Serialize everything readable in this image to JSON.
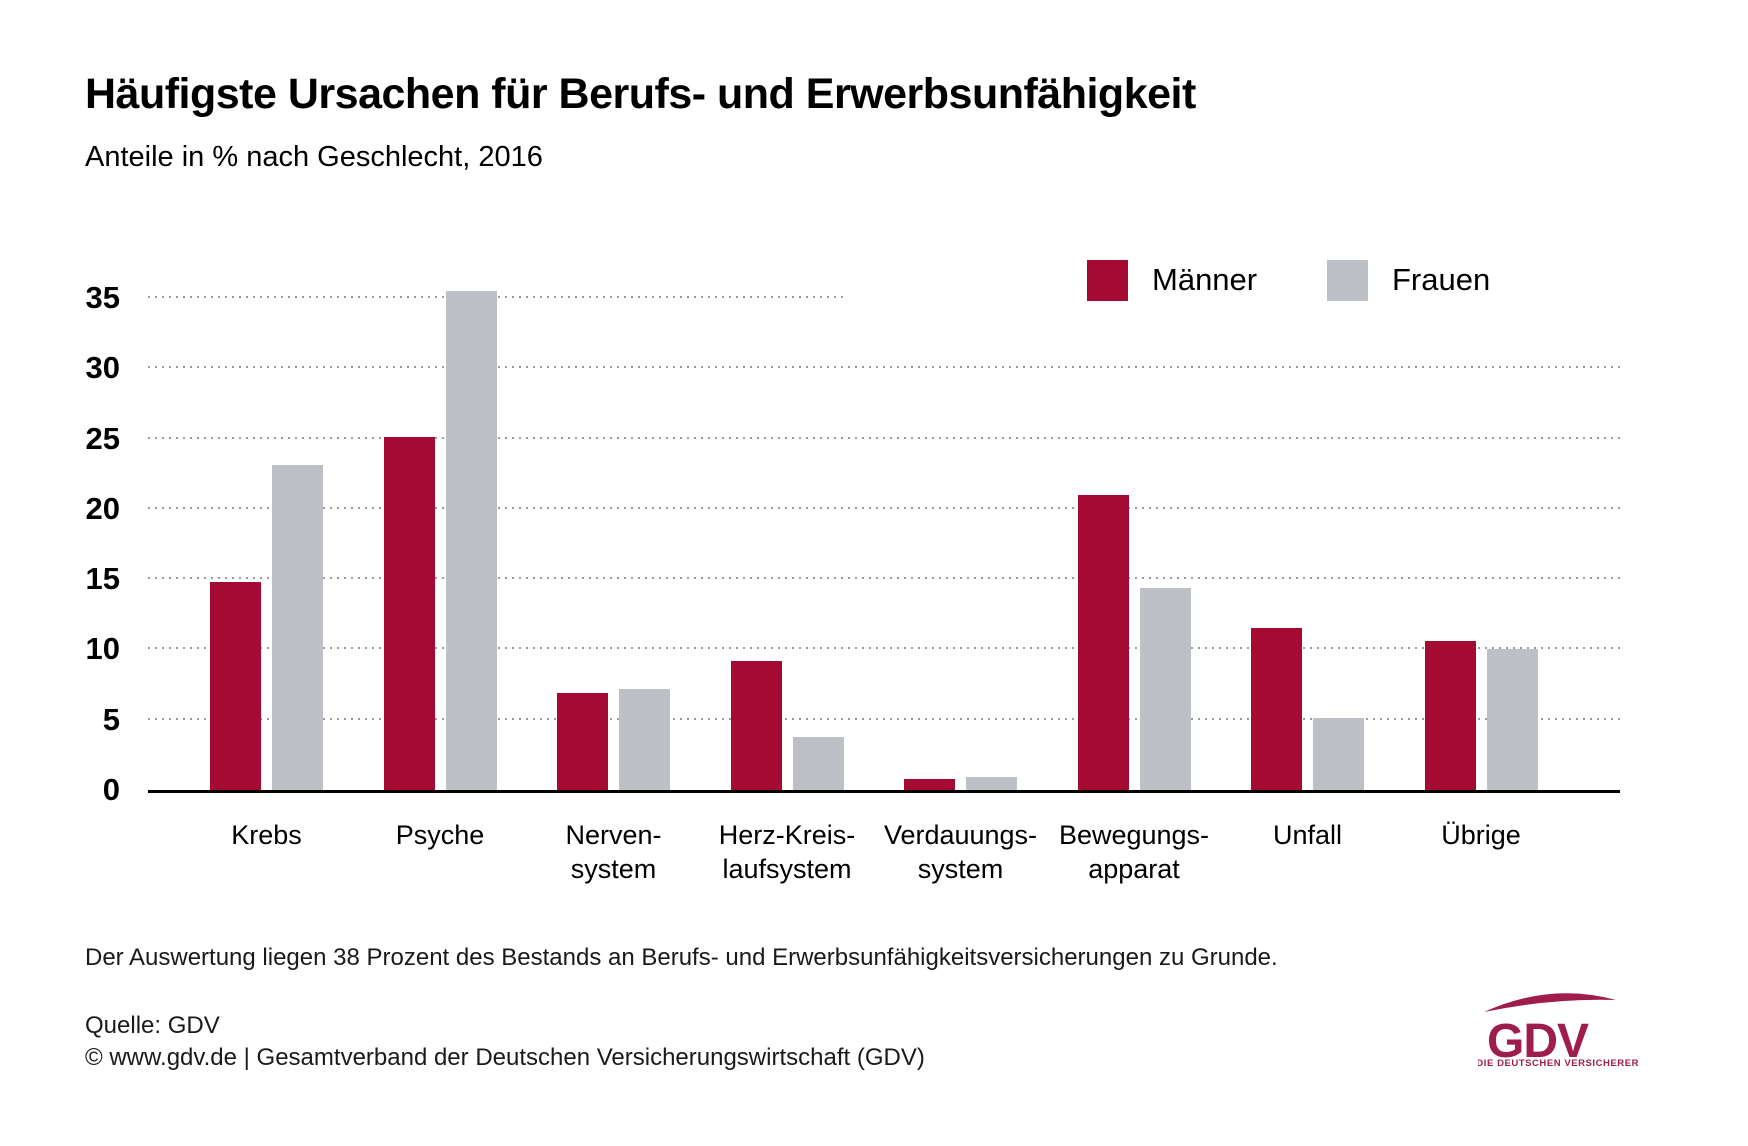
{
  "header": {
    "title": "Häufigste Ursachen für Berufs- und Erwerbsunfähigkeit",
    "subtitle": "Anteile in % nach Geschlecht, 2016"
  },
  "chart_data": {
    "type": "bar",
    "title": "Häufigste Ursachen für Berufs- und Erwerbsunfähigkeit",
    "subtitle": "Anteile in % nach Geschlecht, 2016",
    "unit": "%",
    "categories": [
      [
        "Krebs"
      ],
      [
        "Psyche"
      ],
      [
        "Nerven-",
        "system"
      ],
      [
        "Herz-Kreis-",
        "laufsystem"
      ],
      [
        "Verdauungs-",
        "system"
      ],
      [
        "Bewegungs-",
        "apparat"
      ],
      [
        "Unfall"
      ],
      [
        "Übrige"
      ]
    ],
    "series": [
      {
        "name": "Männer",
        "color": "#a50b32",
        "values": [
          14.8,
          25.1,
          6.9,
          9.2,
          0.8,
          21.0,
          11.5,
          10.6
        ]
      },
      {
        "name": "Frauen",
        "color": "#bdc0c4",
        "values": [
          23.1,
          35.5,
          7.2,
          3.8,
          0.9,
          14.4,
          5.1,
          10.0
        ]
      }
    ],
    "yticks": [
      0,
      5,
      10,
      15,
      20,
      25,
      30,
      35
    ],
    "ylim": [
      0,
      39.8
    ],
    "grid": "horizontal-dotted",
    "legend_position": "top-right"
  },
  "footer": {
    "note": "Der Auswertung liegen 38 Prozent des Bestands an Berufs- und Erwerbsunfähigkeitsversicherungen zu Grunde.",
    "source": "Quelle: GDV",
    "copyright": "© www.gdv.de | Gesamtverband der Deutschen Versicherungswirtschaft (GDV)"
  },
  "logo": {
    "text": "GDV",
    "tagline": "DIE DEUTSCHEN VERSICHERER",
    "color": "#9e1d4c"
  }
}
